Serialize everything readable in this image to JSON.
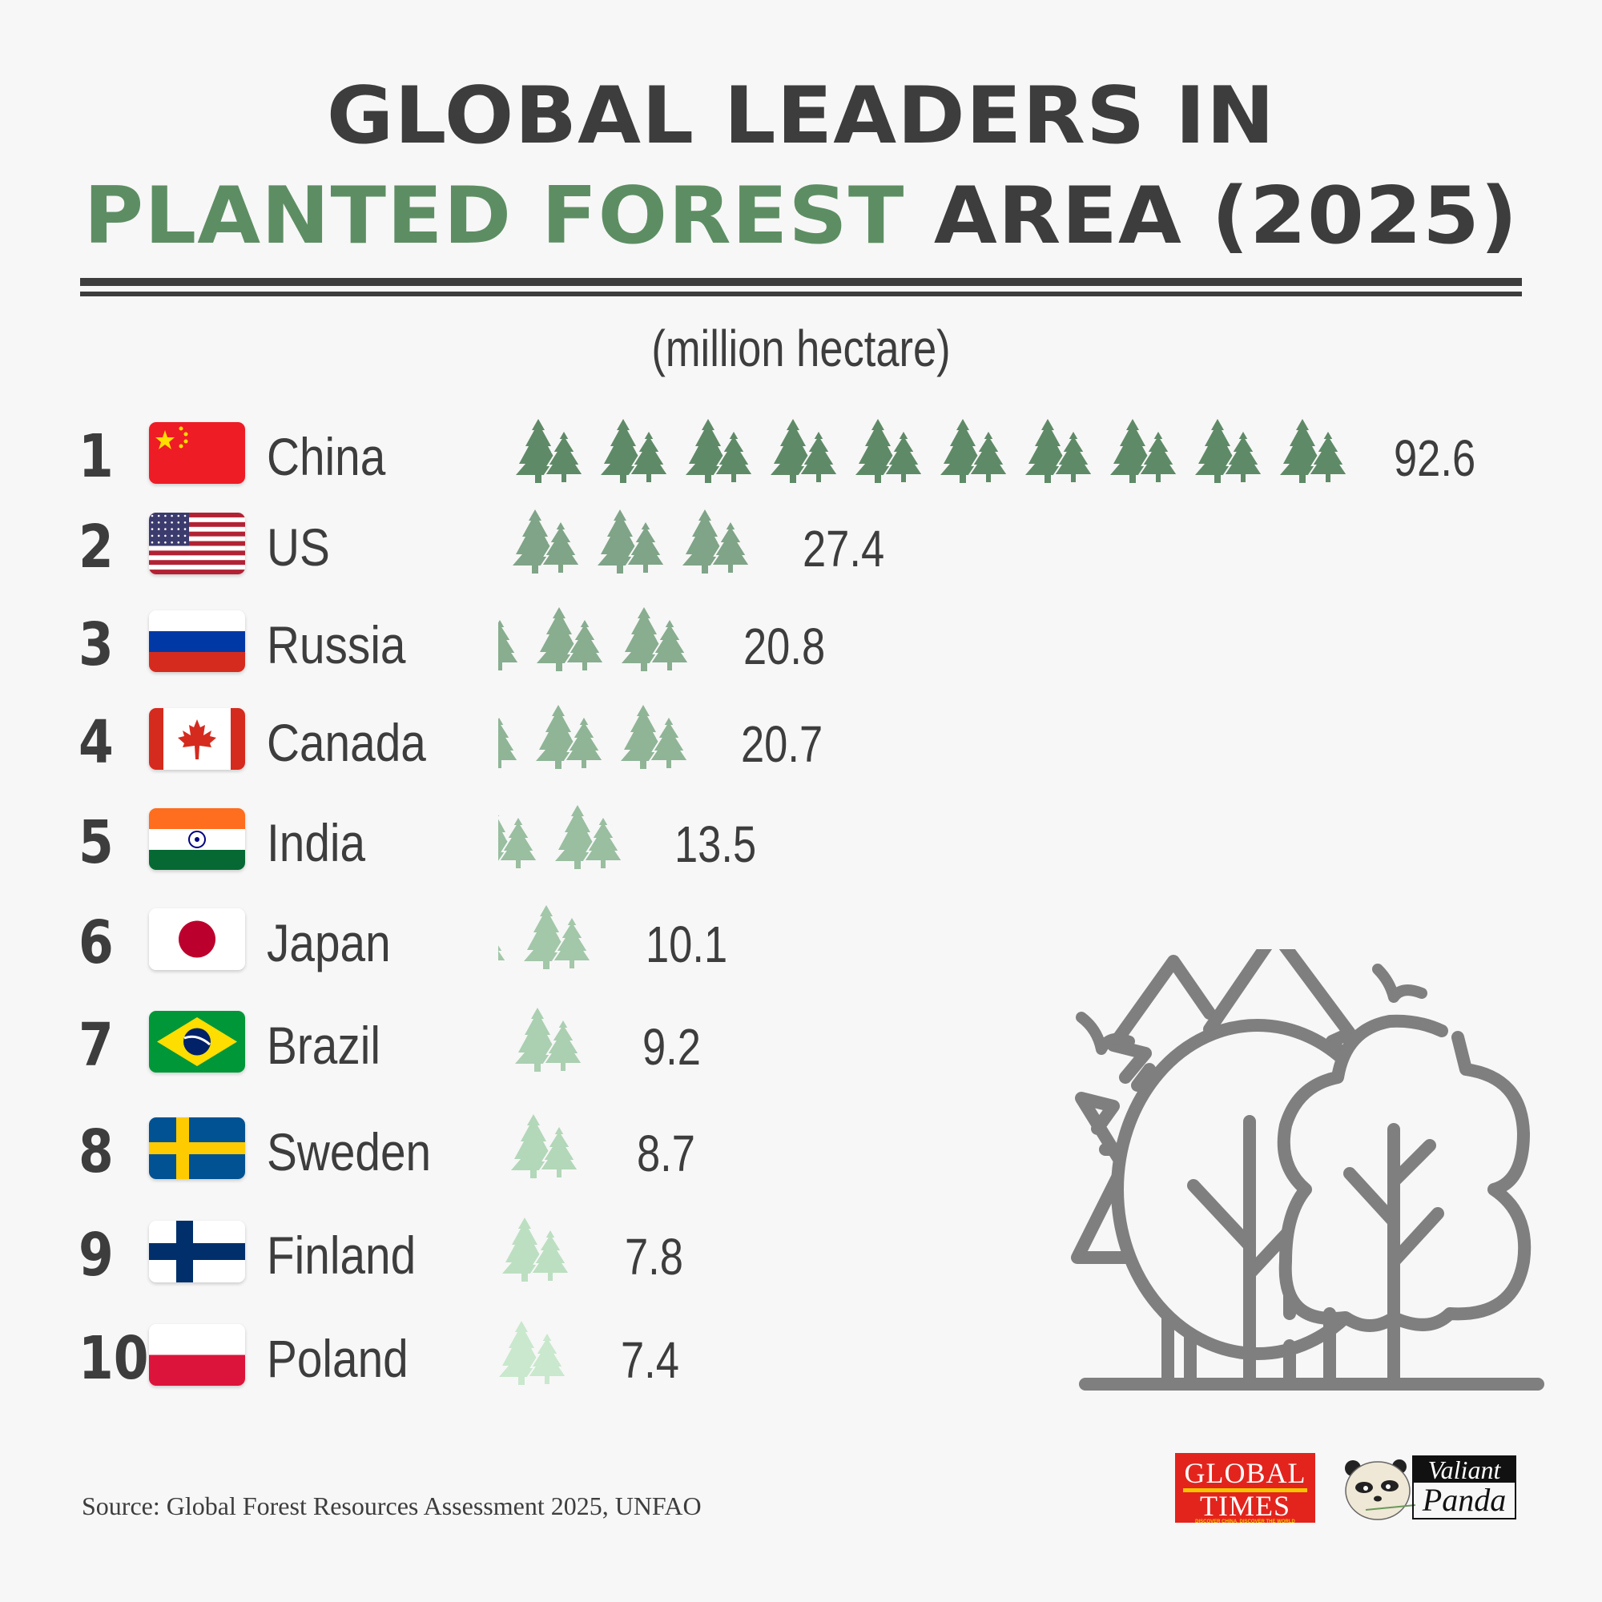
{
  "header": {
    "title_line1": "GLOBAL LEADERS IN",
    "title_line2_green": "PLANTED FOREST",
    "title_line2_dark": "AREA (2025)",
    "unit": "(million hectare)"
  },
  "colors": {
    "background": "#f7f7f7",
    "text": "#3d3d3d",
    "accent_green": "#5d8e63",
    "tree_shades": [
      "#5f8a67",
      "#7fa487",
      "#88ad8f",
      "#8fb596",
      "#99bea0",
      "#a3c7a9",
      "#abcfb1",
      "#b3d7b9",
      "#bcdfc1",
      "#c9e8cd"
    ]
  },
  "rows": [
    {
      "rank": "1",
      "country": "China",
      "value": "92.6",
      "flag": "china-flag"
    },
    {
      "rank": "2",
      "country": "US",
      "value": "27.4",
      "flag": "us-flag"
    },
    {
      "rank": "3",
      "country": "Russia",
      "value": "20.8",
      "flag": "russia-flag"
    },
    {
      "rank": "4",
      "country": "Canada",
      "value": "20.7",
      "flag": "canada-flag"
    },
    {
      "rank": "5",
      "country": "India",
      "value": "13.5",
      "flag": "india-flag"
    },
    {
      "rank": "6",
      "country": "Japan",
      "value": "10.1",
      "flag": "japan-flag"
    },
    {
      "rank": "7",
      "country": "Brazil",
      "value": "9.2",
      "flag": "brazil-flag"
    },
    {
      "rank": "8",
      "country": "Sweden",
      "value": "8.7",
      "flag": "sweden-flag"
    },
    {
      "rank": "9",
      "country": "Finland",
      "value": "7.8",
      "flag": "finland-flag"
    },
    {
      "rank": "10",
      "country": "Poland",
      "value": "7.4",
      "flag": "poland-flag"
    }
  ],
  "footer": {
    "source": "Source: Global Forest Resources Assessment 2025, UNFAO",
    "logo_gt_line1": "GLOBAL",
    "logo_gt_line2": "TIMES",
    "logo_gt_tagline": "DISCOVER CHINA, DISCOVER THE WORLD",
    "logo_vp_line1": "Valiant",
    "logo_vp_line2": "Panda"
  },
  "chart_data": {
    "type": "bar",
    "subtype": "pictogram",
    "title": "GLOBAL LEADERS IN PLANTED FOREST AREA (2025)",
    "subtitle": "(million hectare)",
    "xlabel": "",
    "ylabel": "Planted forest area (million hectare)",
    "categories": [
      "China",
      "US",
      "Russia",
      "Canada",
      "India",
      "Japan",
      "Brazil",
      "Sweden",
      "Finland",
      "Poland"
    ],
    "values": [
      92.6,
      27.4,
      20.8,
      20.7,
      13.5,
      10.1,
      9.2,
      8.7,
      7.8,
      7.4
    ],
    "orientation": "horizontal",
    "icon": "pine-tree-pair",
    "grid": false,
    "legend": null,
    "source": "Global Forest Resources Assessment 2025, UNFAO"
  }
}
